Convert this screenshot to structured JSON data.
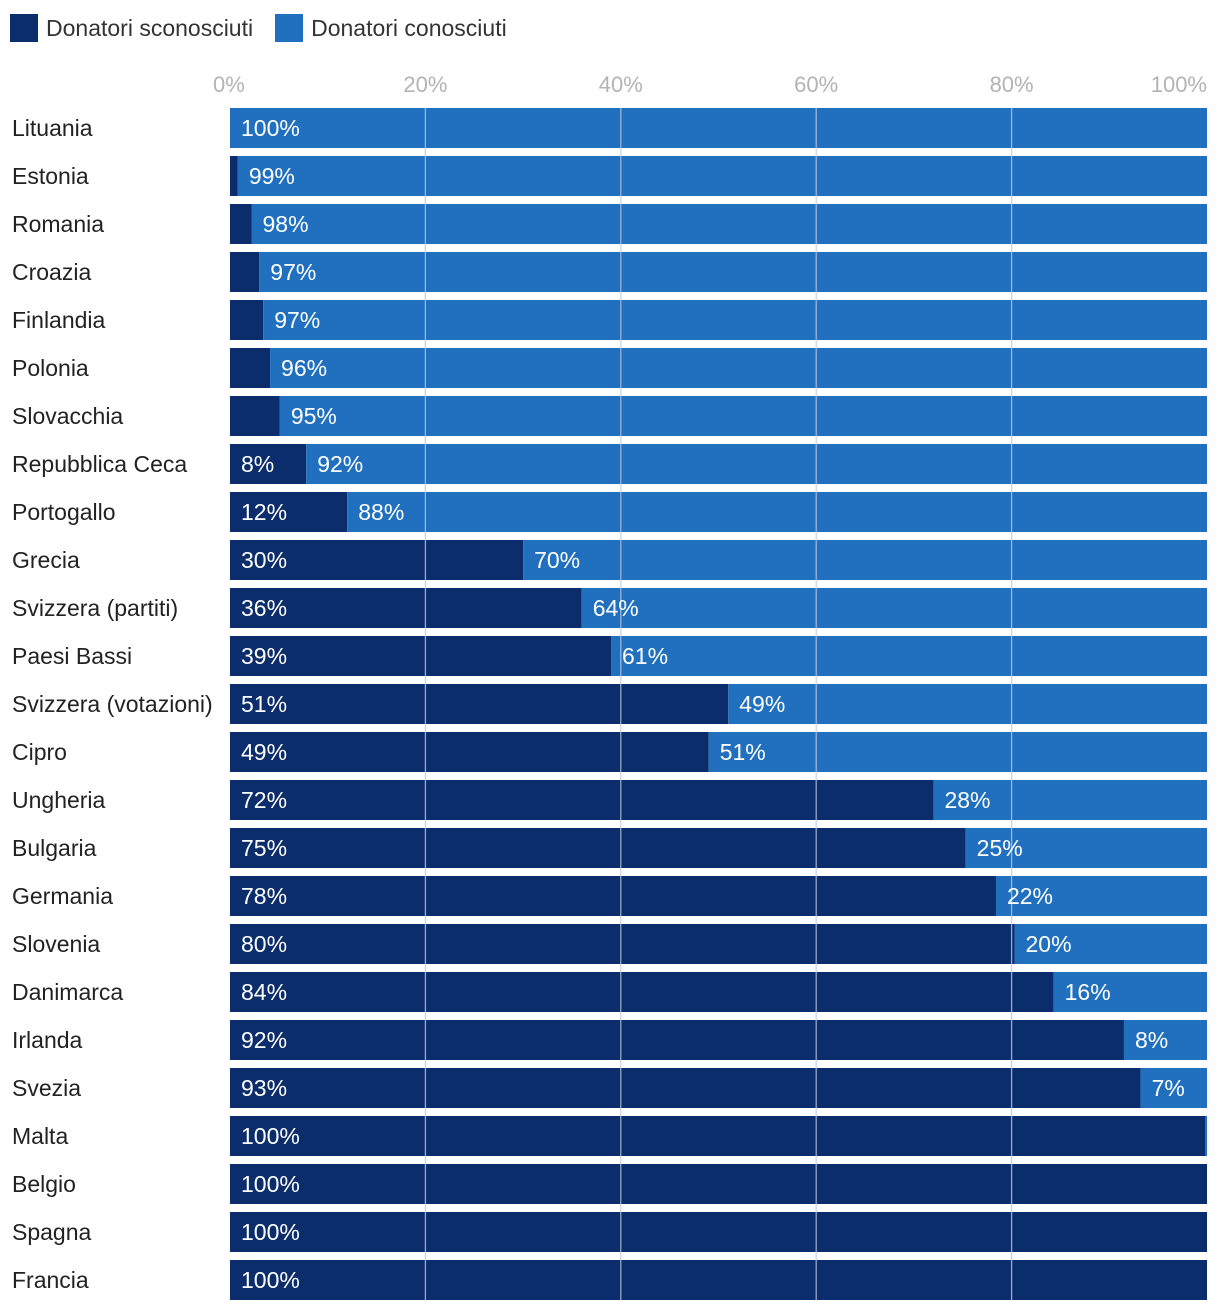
{
  "colors": {
    "unknown": "#0b2d6b",
    "known": "#2070bf",
    "grid": "#b9c9dd",
    "tick": "#b3b3b3"
  },
  "legend": [
    {
      "label": "Donatori sconosciuti",
      "color": "#0b2d6b"
    },
    {
      "label": "Donatori conosciuti",
      "color": "#2070bf"
    }
  ],
  "chart_data": {
    "type": "bar",
    "orientation": "horizontal",
    "stacked": true,
    "xlim": [
      0,
      100
    ],
    "ticks": [
      "0%",
      "20%",
      "40%",
      "60%",
      "80%",
      "100%"
    ],
    "categories": [
      "Lituania",
      "Estonia",
      "Romania",
      "Croazia",
      "Finlandia",
      "Polonia",
      "Slovacchia",
      "Repubblica Ceca",
      "Portogallo",
      "Grecia",
      "Svizzera (partiti)",
      "Paesi Bassi",
      "Svizzera (votazioni)",
      "Cipro",
      "Ungheria",
      "Bulgaria",
      "Germania",
      "Slovenia",
      "Danimarca",
      "Irlanda",
      "Svezia",
      "Malta",
      "Belgio",
      "Spagna",
      "Francia"
    ],
    "series": [
      {
        "name": "Donatori sconosciuti",
        "values": [
          0,
          0.8,
          2.2,
          3,
          3.4,
          4.1,
          5.1,
          7.8,
          12,
          30,
          36,
          39,
          51,
          49,
          72,
          75.3,
          78.4,
          80.3,
          84.3,
          91.5,
          93.2,
          99.8,
          100,
          100,
          100
        ],
        "labels": [
          "",
          "",
          "",
          "",
          "",
          "",
          "",
          "8%",
          "12%",
          "30%",
          "36%",
          "39%",
          "51%",
          "49%",
          "72%",
          "75%",
          "78%",
          "80%",
          "84%",
          "92%",
          "93%",
          "100%",
          "100%",
          "100%",
          "100%"
        ]
      },
      {
        "name": "Donatori conosciuti",
        "values": [
          100,
          99.2,
          97.8,
          97,
          96.6,
          95.9,
          94.9,
          92.2,
          88,
          70,
          64,
          61,
          49,
          51,
          28,
          24.7,
          21.6,
          19.7,
          15.7,
          8.5,
          6.8,
          0.2,
          0,
          0,
          0
        ],
        "labels": [
          "100%",
          "99%",
          "98%",
          "97%",
          "97%",
          "96%",
          "95%",
          "92%",
          "88%",
          "70%",
          "64%",
          "61%",
          "49%",
          "51%",
          "28%",
          "25%",
          "22%",
          "20%",
          "16%",
          "8%",
          "7%",
          "",
          "",
          "",
          ""
        ]
      }
    ]
  }
}
